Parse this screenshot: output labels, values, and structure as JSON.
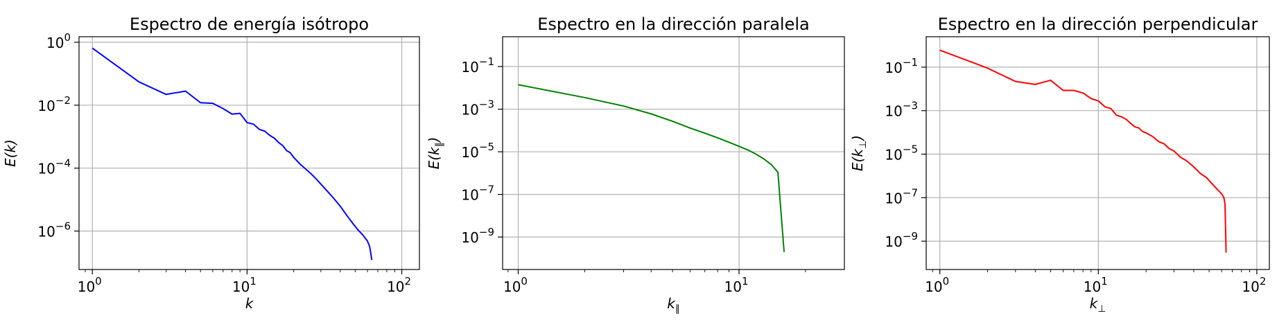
{
  "figure": {
    "background": "#ffffff"
  },
  "chart_data": [
    {
      "type": "line",
      "title": "Espectro de energía isótropo",
      "xlabel": "k",
      "ylabel": "E(k)",
      "xscale": "log",
      "yscale": "log",
      "xlim": [
        0.82,
        130
      ],
      "ylim": [
        6e-08,
        1.5
      ],
      "xticks": [
        {
          "value": 1,
          "base": "10",
          "exp": "0"
        },
        {
          "value": 10,
          "base": "10",
          "exp": "1"
        },
        {
          "value": 100,
          "base": "10",
          "exp": "2"
        }
      ],
      "yticks": [
        {
          "value": 1e-06,
          "base": "10",
          "exp": "−6"
        },
        {
          "value": 0.0001,
          "base": "10",
          "exp": "−4"
        },
        {
          "value": 0.01,
          "base": "10",
          "exp": "−2"
        },
        {
          "value": 1,
          "base": "10",
          "exp": "0"
        }
      ],
      "grid": true,
      "series": [
        {
          "color": "#0000ff",
          "x": [
            1,
            2,
            3,
            4,
            5,
            6,
            7,
            8,
            9,
            10,
            11,
            12,
            13,
            14,
            15,
            16,
            17,
            18,
            19,
            20,
            22,
            24,
            26,
            28,
            30,
            33,
            36,
            40,
            44,
            48,
            52,
            56,
            60,
            62,
            63,
            64
          ],
          "y": [
            0.65,
            0.055,
            0.022,
            0.028,
            0.012,
            0.0115,
            0.0078,
            0.0052,
            0.0055,
            0.0028,
            0.0025,
            0.0017,
            0.0015,
            0.0011,
            0.0009,
            0.00065,
            0.00052,
            0.00036,
            0.00031,
            0.00022,
            0.000135,
            9.2e-05,
            6.5e-05,
            4.5e-05,
            3.1e-05,
            1.85e-05,
            1.15e-05,
            6.2e-06,
            3.2e-06,
            1.8e-06,
            1.1e-06,
            7.5e-07,
            4.8e-07,
            3.2e-07,
            2e-07,
            1.2e-07
          ]
        }
      ]
    },
    {
      "type": "line",
      "title": "Espectro en la dirección paralela",
      "xlabel": "k",
      "xlabel_sub": "∥",
      "ylabel": "E(k",
      "ylabel_sub": "∥",
      "ylabel_close": ")",
      "xscale": "log",
      "yscale": "log",
      "xlim": [
        0.85,
        30
      ],
      "ylim": [
        3e-11,
        2.5
      ],
      "xticks": [
        {
          "value": 1,
          "base": "10",
          "exp": "0"
        },
        {
          "value": 10,
          "base": "10",
          "exp": "1"
        }
      ],
      "yticks": [
        {
          "value": 1e-09,
          "base": "10",
          "exp": "−9"
        },
        {
          "value": 1e-07,
          "base": "10",
          "exp": "−7"
        },
        {
          "value": 1e-05,
          "base": "10",
          "exp": "−5"
        },
        {
          "value": 0.001,
          "base": "10",
          "exp": "−3"
        },
        {
          "value": 0.1,
          "base": "10",
          "exp": "−1"
        }
      ],
      "grid": true,
      "series": [
        {
          "color": "#008000",
          "x": [
            1,
            2,
            3,
            4,
            5,
            6,
            7,
            8,
            9,
            10,
            11,
            12,
            13,
            14,
            15,
            16
          ],
          "y": [
            0.014,
            0.0035,
            0.0014,
            0.0006,
            0.00027,
            0.00013,
            7.5e-05,
            4.5e-05,
            2.8e-05,
            1.8e-05,
            1.2e-05,
            7.5e-06,
            4.5e-06,
            2.5e-06,
            1.1e-06,
            2e-10
          ]
        }
      ]
    },
    {
      "type": "line",
      "title": "Espectro en la dirección perpendicular",
      "xlabel": "k",
      "xlabel_sub": "⊥",
      "ylabel": "E(k",
      "ylabel_sub": "⊥",
      "ylabel_close": ")",
      "xscale": "log",
      "yscale": "log",
      "xlim": [
        0.82,
        120
      ],
      "ylim": [
        5e-11,
        2.5
      ],
      "xticks": [
        {
          "value": 1,
          "base": "10",
          "exp": "0"
        },
        {
          "value": 10,
          "base": "10",
          "exp": "1"
        },
        {
          "value": 100,
          "base": "10",
          "exp": "2"
        }
      ],
      "yticks": [
        {
          "value": 1e-09,
          "base": "10",
          "exp": "−9"
        },
        {
          "value": 1e-07,
          "base": "10",
          "exp": "−7"
        },
        {
          "value": 1e-05,
          "base": "10",
          "exp": "−5"
        },
        {
          "value": 0.001,
          "base": "10",
          "exp": "−3"
        },
        {
          "value": 0.1,
          "base": "10",
          "exp": "−1"
        }
      ],
      "grid": true,
      "series": [
        {
          "color": "#ff0000",
          "x": [
            1,
            2,
            3,
            4,
            5,
            6,
            7,
            8,
            9,
            10,
            11,
            12,
            13,
            14,
            15,
            16,
            17,
            18,
            19,
            20,
            22,
            24,
            26,
            28,
            30,
            33,
            36,
            40,
            44,
            48,
            52,
            56,
            60,
            62,
            63,
            64
          ],
          "y": [
            0.6,
            0.09,
            0.022,
            0.016,
            0.025,
            0.0085,
            0.0085,
            0.0065,
            0.0036,
            0.0028,
            0.0015,
            0.00125,
            0.00062,
            0.00052,
            0.0004,
            0.00026,
            0.00018,
            0.00016,
            0.00011,
            9.5e-05,
            6.5e-05,
            3.8e-05,
            3e-05,
            1.8e-05,
            1.4e-05,
            7.2e-06,
            5e-06,
            2.6e-06,
            1.3e-06,
            8.5e-07,
            4.5e-07,
            2.5e-07,
            1.5e-07,
            1e-07,
            5e-08,
            3e-10
          ]
        }
      ]
    }
  ]
}
